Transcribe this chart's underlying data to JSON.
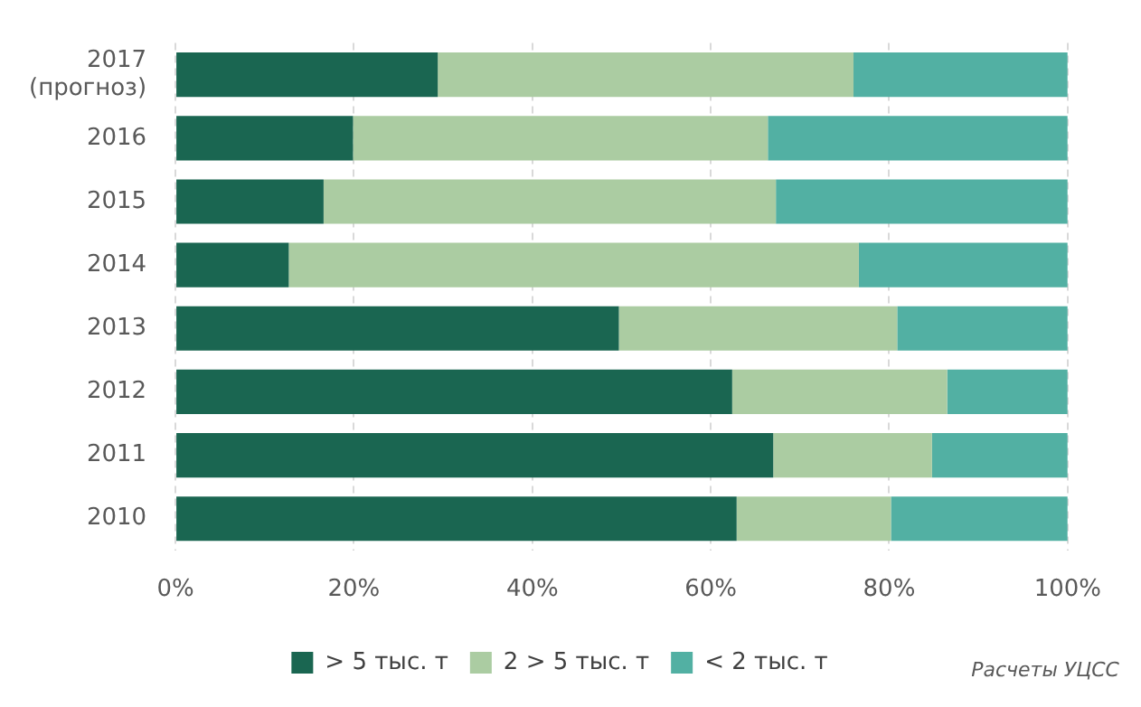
{
  "chart_data": {
    "type": "bar",
    "orientation": "horizontal",
    "stacked": true,
    "categories": [
      "2017 (прогноз)",
      "2016",
      "2015",
      "2014",
      "2013",
      "2012",
      "2011",
      "2010"
    ],
    "series": [
      {
        "name": "> 5 тыс. т",
        "color": "#1a6651",
        "values": [
          29.4,
          19.9,
          16.6,
          12.7,
          49.7,
          62.4,
          67.0,
          62.9
        ]
      },
      {
        "name": "2 > 5 тыс. т",
        "color": "#abcca2",
        "values": [
          46.6,
          46.5,
          50.7,
          63.9,
          31.2,
          24.1,
          17.8,
          17.3
        ]
      },
      {
        "name": "< 2 тыс. т",
        "color": "#52b0a3",
        "values": [
          24.0,
          33.6,
          32.7,
          23.4,
          19.1,
          13.5,
          15.2,
          19.8
        ]
      }
    ],
    "xlim": [
      0,
      100
    ],
    "xticks": [
      {
        "value": 0,
        "label": "0%"
      },
      {
        "value": 20,
        "label": "20%"
      },
      {
        "value": 40,
        "label": "40%"
      },
      {
        "value": 60,
        "label": "60%"
      },
      {
        "value": 80,
        "label": "80%"
      },
      {
        "value": 100,
        "label": "100%"
      }
    ],
    "grid": "x",
    "legend": "bottom",
    "annotations": [
      "Расчеты УЦСС"
    ]
  }
}
